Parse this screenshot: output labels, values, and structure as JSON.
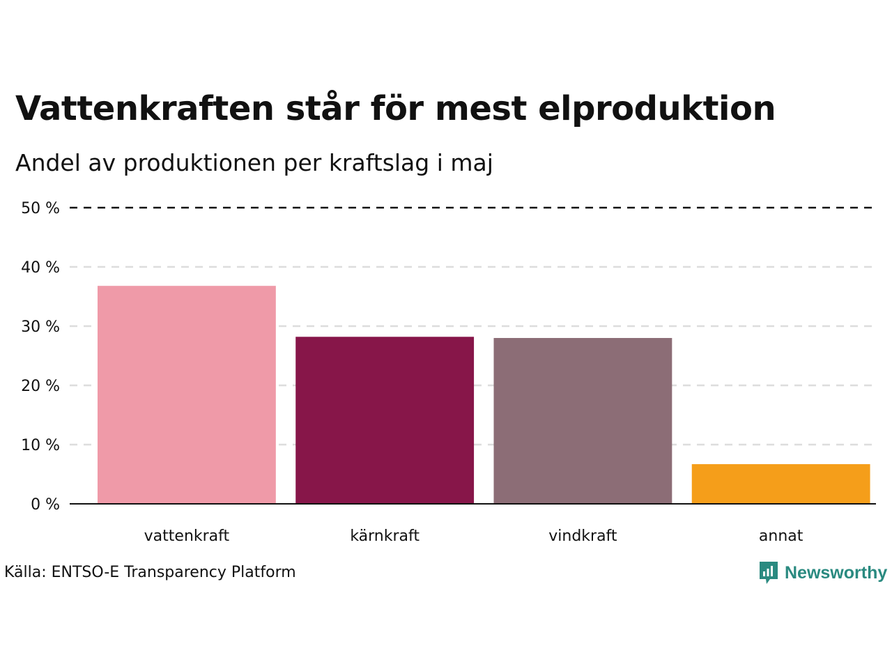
{
  "chart_data": {
    "type": "bar",
    "title": "Vattenkraften står för mest elproduktion",
    "subtitle": "Andel av produktionen per kraftslag i maj",
    "categories": [
      "vattenkraft",
      "kärnkraft",
      "vindkraft",
      "annat"
    ],
    "values": [
      36.8,
      28.2,
      28.0,
      6.7
    ],
    "colors": [
      "#ef9aa8",
      "#871649",
      "#8c6d76",
      "#f59e1a"
    ],
    "ylim": [
      0,
      50
    ],
    "yticks": [
      0,
      10,
      20,
      30,
      40,
      50
    ],
    "ytick_labels": [
      "0 %",
      "10 %",
      "20 %",
      "30 %",
      "40 %",
      "50 %"
    ],
    "xlabel": "",
    "ylabel": "",
    "grid": true,
    "legend": "none"
  },
  "footer": {
    "source": "Källa: ENTSO-E Transparency Platform",
    "brand": "Newsworthy",
    "brand_icon": "newsworthy-logo-icon",
    "brand_color": "#2a8a80"
  }
}
